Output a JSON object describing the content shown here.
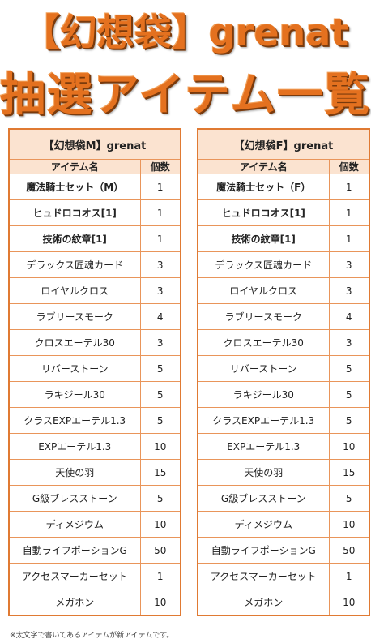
{
  "title_line1": "【幻想袋】grenat",
  "title_line2": "抽選アイテム一覧",
  "tables": [
    {
      "header": "【幻想袋M】grenat",
      "col_item": "アイテム名",
      "col_count": "個数",
      "rows": [
        {
          "name": "魔法騎士セット（M）",
          "count": "1",
          "bold": true
        },
        {
          "name": "ヒュドロコオス[1]",
          "count": "1",
          "bold": true
        },
        {
          "name": "技術の紋章[1]",
          "count": "1",
          "bold": true
        },
        {
          "name": "デラックス匠魂カード",
          "count": "3",
          "bold": false
        },
        {
          "name": "ロイヤルクロス",
          "count": "3",
          "bold": false
        },
        {
          "name": "ラブリースモーク",
          "count": "4",
          "bold": false
        },
        {
          "name": "クロスエーテル30",
          "count": "3",
          "bold": false
        },
        {
          "name": "リバーストーン",
          "count": "5",
          "bold": false
        },
        {
          "name": "ラキジール30",
          "count": "5",
          "bold": false
        },
        {
          "name": "クラスEXPエーテル1.3",
          "count": "5",
          "bold": false
        },
        {
          "name": "EXPエーテル1.3",
          "count": "10",
          "bold": false
        },
        {
          "name": "天使の羽",
          "count": "15",
          "bold": false
        },
        {
          "name": "G級ブレスストーン",
          "count": "5",
          "bold": false
        },
        {
          "name": "ディメジウム",
          "count": "10",
          "bold": false
        },
        {
          "name": "自動ライフポーションG",
          "count": "50",
          "bold": false
        },
        {
          "name": "アクセスマーカーセット",
          "count": "1",
          "bold": false
        },
        {
          "name": "メガホン",
          "count": "10",
          "bold": false
        }
      ]
    },
    {
      "header": "【幻想袋F】grenat",
      "col_item": "アイテム名",
      "col_count": "個数",
      "rows": [
        {
          "name": "魔法騎士セット（F）",
          "count": "1",
          "bold": true
        },
        {
          "name": "ヒュドロコオス[1]",
          "count": "1",
          "bold": true
        },
        {
          "name": "技術の紋章[1]",
          "count": "1",
          "bold": true
        },
        {
          "name": "デラックス匠魂カード",
          "count": "3",
          "bold": false
        },
        {
          "name": "ロイヤルクロス",
          "count": "3",
          "bold": false
        },
        {
          "name": "ラブリースモーク",
          "count": "4",
          "bold": false
        },
        {
          "name": "クロスエーテル30",
          "count": "3",
          "bold": false
        },
        {
          "name": "リバーストーン",
          "count": "5",
          "bold": false
        },
        {
          "name": "ラキジール30",
          "count": "5",
          "bold": false
        },
        {
          "name": "クラスEXPエーテル1.3",
          "count": "5",
          "bold": false
        },
        {
          "name": "EXPエーテル1.3",
          "count": "10",
          "bold": false
        },
        {
          "name": "天使の羽",
          "count": "15",
          "bold": false
        },
        {
          "name": "G級ブレスストーン",
          "count": "5",
          "bold": false
        },
        {
          "name": "ディメジウム",
          "count": "10",
          "bold": false
        },
        {
          "name": "自動ライフポーションG",
          "count": "50",
          "bold": false
        },
        {
          "name": "アクセスマーカーセット",
          "count": "1",
          "bold": false
        },
        {
          "name": "メガホン",
          "count": "10",
          "bold": false
        }
      ]
    }
  ],
  "note": "※太文字で書いてあるアイテムが新アイテムです。",
  "colors": {
    "title": "#e4711f",
    "border": "#e07a33",
    "header_bg": "#fbe3d0"
  }
}
